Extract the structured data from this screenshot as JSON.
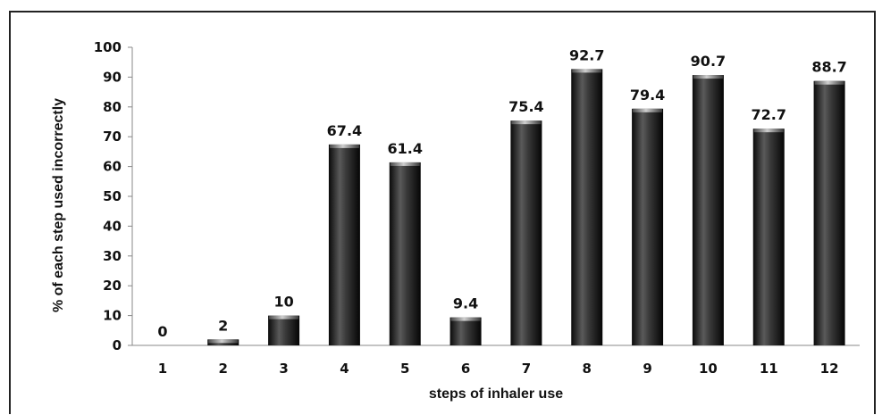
{
  "chart_data": {
    "type": "bar",
    "categories": [
      "1",
      "2",
      "3",
      "4",
      "5",
      "6",
      "7",
      "8",
      "9",
      "10",
      "11",
      "12"
    ],
    "values": [
      0,
      2,
      10,
      67.4,
      61.4,
      9.4,
      75.4,
      92.7,
      79.4,
      90.7,
      72.7,
      88.7
    ],
    "data_labels": [
      "0",
      "2",
      "10",
      "67.4",
      "61.4",
      "9.4",
      "75.4",
      "92.7",
      "79.4",
      "90.7",
      "72.7",
      "88.7"
    ],
    "title": "",
    "xlabel": "steps of inhaler use",
    "ylabel": "% of each step used incorrectly",
    "ylim": [
      0,
      100
    ],
    "yticks": [
      0,
      10,
      20,
      30,
      40,
      50,
      60,
      70,
      80,
      90,
      100
    ],
    "grid": false,
    "legend": "none",
    "bar_color": "#1a1a1a"
  }
}
